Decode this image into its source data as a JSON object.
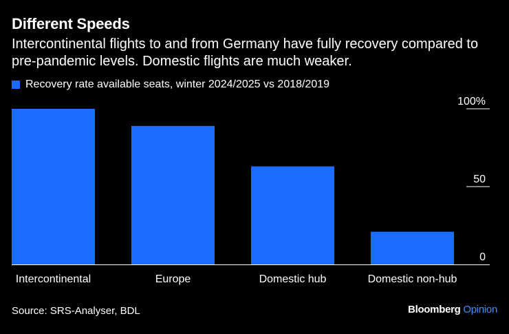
{
  "header": {
    "title": "Different Speeds",
    "subtitle": "Intercontinental flights to and from Germany have fully recovery compared to pre-pandemic levels. Domestic flights are much weaker."
  },
  "footer": {
    "source": "Source: SRS-Analyser, BDL",
    "brand_main": "Bloomberg",
    "brand_accent": "Opinion"
  },
  "colors": {
    "bar": "#1a6dff",
    "axis": "#ffffff",
    "brand_accent": "#4a8dff"
  },
  "chart_data": {
    "type": "bar",
    "title": "Different Speeds",
    "categories": [
      "Intercontinental",
      "Europe",
      "Domestic hub",
      "Domestic non-hub"
    ],
    "series": [
      {
        "name": "Recovery rate available seats, winter 2024/2025 vs 2018/2019",
        "values": [
          100,
          89,
          63,
          21
        ]
      }
    ],
    "ylim": [
      0,
      100
    ],
    "yticks": [
      {
        "value": 0,
        "label": "0"
      },
      {
        "value": 50,
        "label": "50"
      },
      {
        "value": 100,
        "label": "100%"
      }
    ],
    "xlabel": "",
    "ylabel": "",
    "legend_position": "top-left",
    "grid": false
  }
}
